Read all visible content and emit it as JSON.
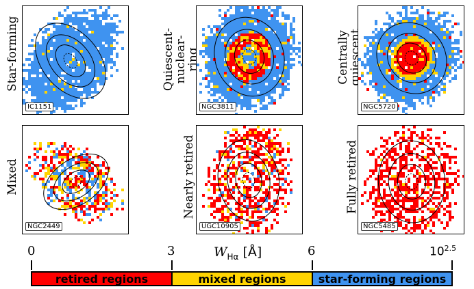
{
  "panels": [
    {
      "label": "Star-forming",
      "galaxy": "IC1151"
    },
    {
      "label": "Quiescent-\nnuclear-\nring",
      "galaxy": "NGC3811"
    },
    {
      "label": "Centrally\nquiescent",
      "galaxy": "NGC5720"
    },
    {
      "label": "Mixed",
      "galaxy": "NGC2449"
    },
    {
      "label": "Nearly retired",
      "galaxy": "UGC10905"
    },
    {
      "label": "Fully retired",
      "galaxy": "NGC5485"
    }
  ],
  "scale": {
    "ticks": [
      "0",
      "3",
      "6",
      "10^2.5"
    ],
    "axis_symbol": "W",
    "axis_sub": "Hα",
    "axis_unit": "[Å]",
    "regions": [
      {
        "label": "retired regions",
        "color": "#ff0000",
        "range": [
          0,
          3
        ]
      },
      {
        "label": "mixed regions",
        "color": "#ffd400",
        "range": [
          3,
          6
        ]
      },
      {
        "label": "star-forming regions",
        "color": "#3f93f0",
        "range": [
          6,
          316
        ]
      }
    ]
  },
  "colors": {
    "retired": "#ff0000",
    "mixed": "#ffd400",
    "star_forming": "#3f93f0"
  }
}
